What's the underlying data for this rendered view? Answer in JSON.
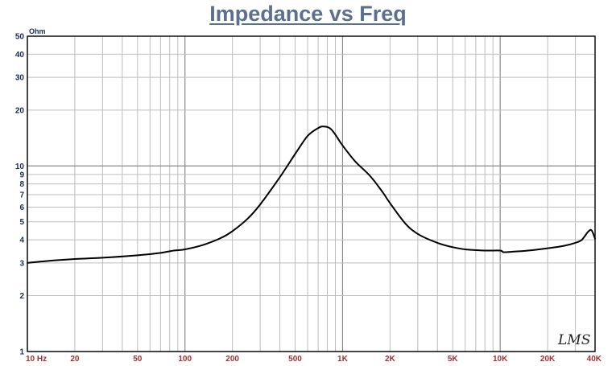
{
  "chart_data": {
    "type": "line",
    "title": "Impedance vs Freq",
    "ylabel": "Ohm",
    "x_scale": "log",
    "y_scale": "log",
    "xlim": [
      10,
      40000
    ],
    "ylim": [
      1,
      50
    ],
    "grid": true,
    "x_ticks": [
      {
        "value": 10,
        "label": "10  Hz"
      },
      {
        "value": 20,
        "label": "20"
      },
      {
        "value": 50,
        "label": "50"
      },
      {
        "value": 100,
        "label": "100"
      },
      {
        "value": 200,
        "label": "200"
      },
      {
        "value": 500,
        "label": "500"
      },
      {
        "value": 1000,
        "label": "1K"
      },
      {
        "value": 2000,
        "label": "2K"
      },
      {
        "value": 5000,
        "label": "5K"
      },
      {
        "value": 10000,
        "label": "10K"
      },
      {
        "value": 20000,
        "label": "20K"
      },
      {
        "value": 40000,
        "label": "40K"
      }
    ],
    "y_ticks": [
      {
        "value": 1,
        "label": "1"
      },
      {
        "value": 2,
        "label": "2"
      },
      {
        "value": 3,
        "label": "3"
      },
      {
        "value": 4,
        "label": "4"
      },
      {
        "value": 5,
        "label": "5"
      },
      {
        "value": 6,
        "label": "6"
      },
      {
        "value": 7,
        "label": "7"
      },
      {
        "value": 8,
        "label": "8"
      },
      {
        "value": 9,
        "label": "9"
      },
      {
        "value": 10,
        "label": "10"
      },
      {
        "value": 20,
        "label": "20"
      },
      {
        "value": 30,
        "label": "30"
      },
      {
        "value": 40,
        "label": "40"
      },
      {
        "value": 50,
        "label": "50"
      }
    ],
    "line_color": "#000000",
    "grid_color": "#bdbdbd",
    "series": [
      {
        "x": [
          10,
          12,
          15,
          20,
          30,
          50,
          70,
          85,
          100,
          130,
          170,
          200,
          250,
          300,
          400,
          500,
          600,
          700,
          760,
          850,
          1000,
          1200,
          1500,
          1800,
          2000,
          2500,
          3000,
          4000,
          5000,
          6000,
          8000,
          10000,
          10500,
          12000,
          15000,
          20000,
          25000,
          30000,
          33000,
          36000,
          38000,
          40000
        ],
        "y": [
          3.0,
          3.05,
          3.1,
          3.15,
          3.2,
          3.3,
          3.4,
          3.5,
          3.55,
          3.75,
          4.1,
          4.45,
          5.2,
          6.2,
          8.7,
          11.6,
          14.5,
          16.0,
          16.3,
          15.7,
          12.9,
          10.6,
          8.8,
          7.2,
          6.3,
          4.9,
          4.3,
          3.85,
          3.65,
          3.55,
          3.5,
          3.5,
          3.43,
          3.45,
          3.5,
          3.6,
          3.7,
          3.85,
          4.0,
          4.4,
          4.5,
          4.05
        ]
      }
    ]
  },
  "signature_text": "LMS"
}
